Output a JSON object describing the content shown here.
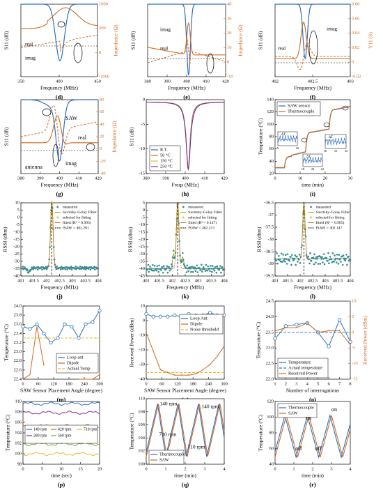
{
  "colors": {
    "blue": "#2a6fc2",
    "orange": "#d2691e",
    "yellow": "#e8b92a",
    "purple": "#7e2f8e",
    "green": "#77ac30",
    "gray": "#808080",
    "teal": "#3a8a93",
    "black": "#000000"
  },
  "chart_data": [
    {
      "id": "d",
      "type": "line",
      "panel_label": "(d)",
      "xlabel": "Frequency (MHz)",
      "ylabel": "S11 (dB)",
      "ylabel_right": "Impedance (Ω)",
      "xticks": [
        "350",
        "400",
        "450"
      ],
      "yticks_right": [
        "-1000",
        "0",
        "500",
        "1000"
      ],
      "ylim_right": [
        -1000,
        1000
      ],
      "annotations": [
        "real",
        "imag"
      ]
    },
    {
      "id": "e",
      "type": "line",
      "panel_label": "(e)",
      "xlabel": "Frequency (MHz)",
      "ylabel": "S11 (dB)",
      "ylabel_right": "Impedance (Ω)",
      "xticks": [
        "380",
        "390",
        "400",
        "410",
        "420"
      ],
      "yticks_right": [
        "-10",
        "0",
        "10",
        "20",
        "30",
        "40"
      ],
      "ylim_right": [
        -10,
        40
      ],
      "annotations": [
        "imag",
        "real"
      ]
    },
    {
      "id": "f",
      "type": "line",
      "panel_label": "(f)",
      "xlabel": "Frequency (MHz)",
      "ylabel": "S11 (dB)",
      "ylabel_right": "Y11 (S)",
      "xticks": [
        "402",
        "402.5",
        "403"
      ],
      "yticks_right": [
        "-0.02",
        "0",
        "0.02",
        "0.04",
        "0.06",
        "0.08"
      ],
      "ylim_right": [
        -0.02,
        0.08
      ],
      "annotations": [
        "imag",
        "real"
      ]
    },
    {
      "id": "g",
      "type": "line",
      "panel_label": "(g)",
      "xlabel": "Frequency (MHz)",
      "ylabel": "S11 (dB)",
      "ylabel_right": "Impedance (Ω)",
      "xticks": [
        "380",
        "390",
        "400",
        "410",
        "420"
      ],
      "yticks_right": [
        "-40",
        "-20",
        "0",
        "20",
        "40",
        "60",
        "80"
      ],
      "ylim_right": [
        -40,
        80
      ],
      "annotations": [
        "SAW",
        "real",
        "antenna",
        "imag"
      ]
    },
    {
      "id": "h",
      "type": "line",
      "panel_label": "(h)",
      "xlabel": "Freqs (MHz)",
      "ylabel": "S11 (dB)",
      "xticks": [
        "380",
        "390",
        "400",
        "410",
        "420"
      ],
      "yticks": [
        "-15",
        "-10",
        "-5",
        "0"
      ],
      "ylim": [
        -17,
        0
      ],
      "series": [
        {
          "name": "R.T."
        },
        {
          "name": "50 °C"
        },
        {
          "name": "150 °C"
        },
        {
          "name": "250 °C"
        }
      ]
    },
    {
      "id": "i",
      "type": "line",
      "panel_label": "(i)",
      "xlabel": "time (min)",
      "ylabel": "Temperature (°C)",
      "xticks": [
        "0",
        "10",
        "20",
        "30"
      ],
      "yticks": [
        "20",
        "40",
        "60",
        "80",
        "100",
        "120",
        "140"
      ],
      "ylim": [
        20,
        150
      ],
      "series": [
        {
          "name": "SAW sensor"
        },
        {
          "name": "Thermocouple"
        }
      ],
      "insets": [
        {
          "xticks": [
            "9",
            "10"
          ],
          "yticks": [
            "-0.5",
            "0",
            "0.5"
          ],
          "label": "ΔT"
        },
        {
          "xticks": [
            "18",
            "20",
            "22"
          ],
          "yticks": [
            "-0.5",
            "0",
            "0.5"
          ],
          "label": "ΔT"
        },
        {
          "xticks": [
            "30",
            "31",
            "32"
          ],
          "yticks": [
            "-0.5",
            "0",
            "0.5"
          ],
          "label": "ΔT"
        }
      ]
    },
    {
      "id": "j",
      "type": "scatter",
      "panel_label": "(j)",
      "xlabel": "Frequency (MHz)",
      "ylabel": "RSSI (dbm)",
      "xticks": [
        "401",
        "401.5",
        "402",
        "402.5",
        "403",
        "403.5",
        "404"
      ],
      "yticks": [
        "-40",
        "-35",
        "-30",
        "-25",
        "-20",
        "-15",
        "-10",
        "-5",
        "0",
        "5",
        "10"
      ],
      "ylim": [
        -45,
        10
      ],
      "series": [
        {
          "name": "measured"
        },
        {
          "name": "Savitzky-Golay Filter"
        },
        {
          "name": "selected for fitting"
        },
        {
          "name": "fitted (R² = 0.993)"
        },
        {
          "name": "fSAW = 402.201"
        }
      ]
    },
    {
      "id": "k",
      "type": "scatter",
      "panel_label": "(k)",
      "xlabel": "Frequency (MHz)",
      "ylabel": "RSSI (dbm)",
      "xticks": [
        "401",
        "401.5",
        "402",
        "402.5",
        "403",
        "403.5",
        "404"
      ],
      "yticks": [
        "-45",
        "-40",
        "-35",
        "-30",
        "-25",
        "-20",
        "-15",
        "-10",
        "-5",
        "0",
        "5"
      ],
      "ylim": [
        -45,
        5
      ],
      "series": [
        {
          "name": "measured"
        },
        {
          "name": "Savitzky-Golay Filter"
        },
        {
          "name": "selected for fitting"
        },
        {
          "name": "fitted (R² = 0.147)"
        },
        {
          "name": "fSAW = 402.213"
        }
      ]
    },
    {
      "id": "l",
      "type": "scatter",
      "panel_label": "(l)",
      "xlabel": "Frequency (MHz)",
      "ylabel": "RSSI (dbm)",
      "xticks": [
        "401",
        "401.5",
        "402",
        "402.5",
        "403",
        "403.5",
        "404"
      ],
      "yticks": [
        "-39.5",
        "-39",
        "-38.5",
        "-38",
        "-37.5",
        "-37",
        "-36.5"
      ],
      "ylim": [
        -39.5,
        -36.5
      ],
      "series": [
        {
          "name": "measured"
        },
        {
          "name": "Savitzky-Golay Filter"
        },
        {
          "name": "selected for fitting"
        },
        {
          "name": "fitted (R² = 0.985)"
        },
        {
          "name": "fSAW = 402.147"
        }
      ]
    },
    {
      "id": "m",
      "type": "line",
      "panel_label": "(m)",
      "xlabel": "SAW Sensor Placement Angle (degree)",
      "ylabel": "Temperature (°C)",
      "xticks": [
        "0",
        "60",
        "120",
        "180",
        "240",
        "300"
      ],
      "yticks": [
        "22.4",
        "22.6",
        "22.8",
        "23.0",
        "23.2",
        "23.4",
        "23.6",
        "23.8",
        "24.0"
      ],
      "ylim": [
        22.4,
        24.0
      ],
      "series": [
        {
          "name": "Loop ant",
          "x": [
            0,
            30,
            60,
            90,
            120,
            150,
            180,
            210,
            240,
            270,
            300,
            330
          ],
          "y": [
            23.55,
            23.5,
            23.6,
            23.4,
            23.2,
            23.3,
            23.6,
            23.55,
            23.3,
            23.6,
            23.65,
            23.9
          ]
        },
        {
          "name": "Dipole",
          "x": [
            0,
            30,
            60,
            90
          ],
          "y": [
            22.4,
            22.5,
            23.55,
            22.7
          ],
          "x2": [
            240,
            270,
            300,
            330
          ],
          "y2": [
            22.1,
            22.3,
            22.4,
            22.5
          ]
        },
        {
          "name": "Actual Temp",
          "y": 23.3
        }
      ]
    },
    {
      "id": "n",
      "type": "line",
      "panel_label": "(n)",
      "xlabel": "SAW Sensor Placement Angle (degree)",
      "ylabel": "Received Power (dBm)",
      "xticks": [
        "0",
        "60",
        "120",
        "180",
        "240",
        "300"
      ],
      "yticks": [
        "-40",
        "-30",
        "-20",
        "-10",
        "0",
        "10"
      ],
      "ylim": [
        -45,
        10
      ],
      "series": [
        {
          "name": "Loop Ant",
          "x": [
            0,
            30,
            60,
            90,
            120,
            150,
            180,
            210,
            240,
            270,
            300,
            330
          ],
          "y": [
            4,
            2,
            2,
            2,
            3,
            2,
            4,
            3,
            3,
            5,
            3,
            3
          ]
        },
        {
          "name": "Dipole",
          "x": [
            0,
            30,
            60,
            90,
            120,
            150,
            180,
            210,
            240,
            270,
            300,
            330
          ],
          "y": [
            -10,
            -24,
            -38,
            -40,
            -42,
            -42,
            -42,
            -41,
            -38,
            -34,
            -28,
            -20
          ]
        },
        {
          "name": "Noise threshold",
          "y": -40
        }
      ]
    },
    {
      "id": "o",
      "type": "line",
      "panel_label": "(o)",
      "xlabel": "Number of interrogations",
      "ylabel": "Temperature (°C)",
      "ylabel_right": "Received Power (dBm)",
      "xticks": [
        "1",
        "2",
        "3",
        "4",
        "5",
        "6",
        "7",
        "8"
      ],
      "yticks": [
        "22.0",
        "22.5",
        "23.0",
        "23.5",
        "24.0",
        "24.5"
      ],
      "ylim": [
        22.0,
        24.5
      ],
      "yticks_right": [
        "-15",
        "-10",
        "-5",
        "0",
        "5",
        "10"
      ],
      "ylim_right": [
        -15,
        10
      ],
      "series": [
        {
          "name": "Temperature",
          "x": [
            1,
            2,
            3,
            4,
            5,
            6,
            7,
            8
          ],
          "y": [
            23.3,
            23.7,
            23.75,
            23.8,
            23.5,
            23.05,
            23.9,
            23.2
          ]
        },
        {
          "name": "Actual temperature",
          "y": 23.5
        },
        {
          "name": "Received Power",
          "x": [
            1,
            2,
            3,
            4,
            5,
            6,
            7,
            8
          ],
          "y": [
            0.5,
            1.5,
            1.5,
            3,
            0,
            0.5,
            0.5,
            -4
          ]
        }
      ]
    },
    {
      "id": "p",
      "type": "line",
      "panel_label": "(p)",
      "xlabel": "time (sec)",
      "ylabel": "Temperature (°C)",
      "xticks": [
        "0",
        "5",
        "10",
        "15",
        "20"
      ],
      "yticks": [
        "98",
        "100",
        "102",
        "104",
        "106",
        "108",
        "110"
      ],
      "ylim": [
        97,
        111
      ],
      "series": [
        {
          "name": "140 rpm",
          "level": 110.5
        },
        {
          "name": "280 rpm",
          "level": 108.5
        },
        {
          "name": "420 rpm",
          "level": 105.5
        },
        {
          "name": "560 rpm",
          "level": 101.5
        },
        {
          "name": "710 rpm",
          "level": 99.3
        }
      ]
    },
    {
      "id": "q",
      "type": "line",
      "panel_label": "(q)",
      "xlabel": "time (min)",
      "ylabel": "Temperature (°C)",
      "xticks": [
        "0",
        "1",
        "2",
        "3",
        "4"
      ],
      "yticks": [
        "100",
        "102",
        "104",
        "106",
        "108",
        "110"
      ],
      "ylim": [
        98.5,
        111.5
      ],
      "series": [
        {
          "name": "Thermocouple"
        },
        {
          "name": "SAW"
        }
      ],
      "annotations": [
        "140 rpm",
        "710 rpm",
        "140 rpm",
        "710 rpm"
      ]
    },
    {
      "id": "r",
      "type": "line",
      "panel_label": "(r)",
      "xlabel": "time (min)",
      "ylabel": "Temperature (°C)",
      "xticks": [
        "0",
        "1",
        "2",
        "3",
        "4"
      ],
      "yticks": [
        "40",
        "60",
        "80",
        "100",
        "120"
      ],
      "ylim": [
        35,
        125
      ],
      "series": [
        {
          "name": "Thermocouple"
        },
        {
          "name": "SAW"
        }
      ],
      "annotations": [
        "on",
        "on",
        "off",
        "off"
      ]
    }
  ]
}
